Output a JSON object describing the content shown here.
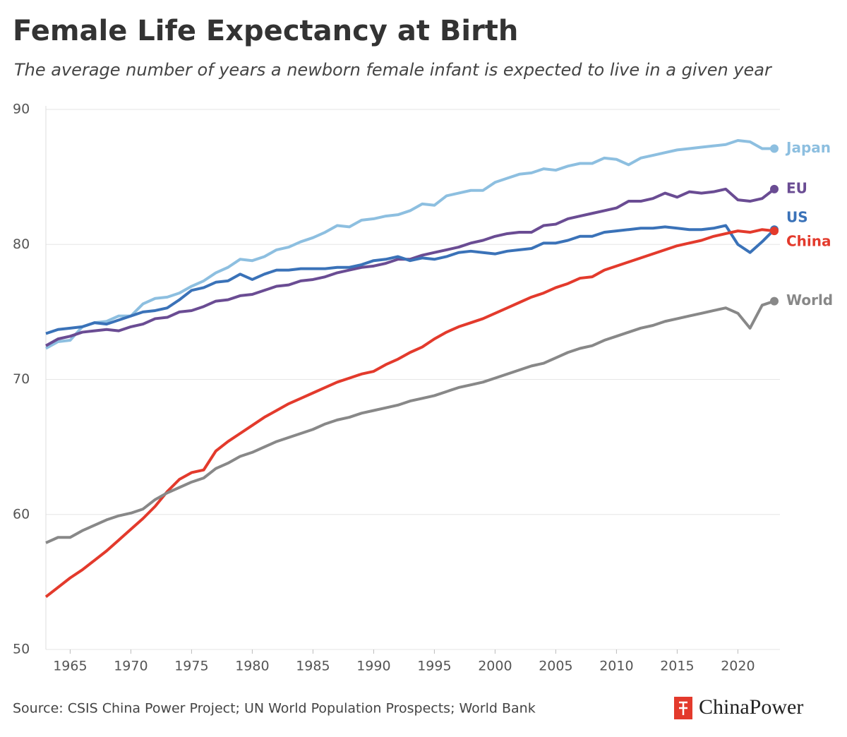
{
  "chart_data": {
    "type": "line",
    "title": "Female Life Expectancy at Birth",
    "subtitle": "The average number of years a newborn female infant is expected to live in a given year",
    "source": "Source: CSIS China Power Project; UN World Population Prospects; World Bank",
    "brand": "ChinaPower",
    "x": [
      1963,
      1964,
      1965,
      1966,
      1967,
      1968,
      1969,
      1970,
      1971,
      1972,
      1973,
      1974,
      1975,
      1976,
      1977,
      1978,
      1979,
      1980,
      1981,
      1982,
      1983,
      1984,
      1985,
      1986,
      1987,
      1988,
      1989,
      1990,
      1991,
      1992,
      1993,
      1994,
      1995,
      1996,
      1997,
      1998,
      1999,
      2000,
      2001,
      2002,
      2003,
      2004,
      2005,
      2006,
      2007,
      2008,
      2009,
      2010,
      2011,
      2012,
      2013,
      2014,
      2015,
      2016,
      2017,
      2018,
      2019,
      2020,
      2021,
      2022,
      2023
    ],
    "xlim": [
      1963,
      2023
    ],
    "xticks": [
      1965,
      1970,
      1975,
      1980,
      1985,
      1990,
      1995,
      2000,
      2005,
      2010,
      2015,
      2020
    ],
    "ylim": [
      50,
      90
    ],
    "yticks": [
      50,
      60,
      70,
      80,
      90
    ],
    "grid": true,
    "series": [
      {
        "name": "Japan",
        "color": "#8dbfe0",
        "values": [
          72.3,
          72.8,
          72.9,
          73.9,
          74.2,
          74.3,
          74.7,
          74.7,
          75.6,
          76.0,
          76.1,
          76.4,
          76.9,
          77.3,
          77.9,
          78.3,
          78.9,
          78.8,
          79.1,
          79.6,
          79.8,
          80.2,
          80.5,
          80.9,
          81.4,
          81.3,
          81.8,
          81.9,
          82.1,
          82.2,
          82.5,
          83.0,
          82.9,
          83.6,
          83.8,
          84.0,
          84.0,
          84.6,
          84.9,
          85.2,
          85.3,
          85.6,
          85.5,
          85.8,
          86.0,
          86.0,
          86.4,
          86.3,
          85.9,
          86.4,
          86.6,
          86.8,
          87.0,
          87.1,
          87.2,
          87.3,
          87.4,
          87.7,
          87.6,
          87.1,
          87.1
        ]
      },
      {
        "name": "EU",
        "color": "#6a4c93",
        "values": [
          72.5,
          73.0,
          73.2,
          73.5,
          73.6,
          73.7,
          73.6,
          73.9,
          74.1,
          74.5,
          74.6,
          75.0,
          75.1,
          75.4,
          75.8,
          75.9,
          76.2,
          76.3,
          76.6,
          76.9,
          77.0,
          77.3,
          77.4,
          77.6,
          77.9,
          78.1,
          78.3,
          78.4,
          78.6,
          78.9,
          78.9,
          79.2,
          79.4,
          79.6,
          79.8,
          80.1,
          80.3,
          80.6,
          80.8,
          80.9,
          80.9,
          81.4,
          81.5,
          81.9,
          82.1,
          82.3,
          82.5,
          82.7,
          83.2,
          83.2,
          83.4,
          83.8,
          83.5,
          83.9,
          83.8,
          83.9,
          84.1,
          83.3,
          83.2,
          83.4,
          84.1
        ]
      },
      {
        "name": "US",
        "color": "#3a72b8",
        "values": [
          73.4,
          73.7,
          73.8,
          73.9,
          74.2,
          74.1,
          74.4,
          74.7,
          75.0,
          75.1,
          75.3,
          75.9,
          76.6,
          76.8,
          77.2,
          77.3,
          77.8,
          77.4,
          77.8,
          78.1,
          78.1,
          78.2,
          78.2,
          78.2,
          78.3,
          78.3,
          78.5,
          78.8,
          78.9,
          79.1,
          78.8,
          79.0,
          78.9,
          79.1,
          79.4,
          79.5,
          79.4,
          79.3,
          79.5,
          79.6,
          79.7,
          80.1,
          80.1,
          80.3,
          80.6,
          80.6,
          80.9,
          81.0,
          81.1,
          81.2,
          81.2,
          81.3,
          81.2,
          81.1,
          81.1,
          81.2,
          81.4,
          80.0,
          79.4,
          80.2,
          81.1
        ]
      },
      {
        "name": "China",
        "color": "#e33a2c",
        "values": [
          53.9,
          54.6,
          55.3,
          55.9,
          56.6,
          57.3,
          58.1,
          58.9,
          59.7,
          60.6,
          61.7,
          62.6,
          63.1,
          63.3,
          64.7,
          65.4,
          66.0,
          66.6,
          67.2,
          67.7,
          68.2,
          68.6,
          69.0,
          69.4,
          69.8,
          70.1,
          70.4,
          70.6,
          71.1,
          71.5,
          72.0,
          72.4,
          73.0,
          73.5,
          73.9,
          74.2,
          74.5,
          74.9,
          75.3,
          75.7,
          76.1,
          76.4,
          76.8,
          77.1,
          77.5,
          77.6,
          78.1,
          78.4,
          78.7,
          79.0,
          79.3,
          79.6,
          79.9,
          80.1,
          80.3,
          80.6,
          80.8,
          81.0,
          80.9,
          81.1,
          81.0
        ]
      },
      {
        "name": "World",
        "color": "#888888",
        "values": [
          57.9,
          58.3,
          58.3,
          58.8,
          59.2,
          59.6,
          59.9,
          60.1,
          60.4,
          61.1,
          61.6,
          62.0,
          62.4,
          62.7,
          63.4,
          63.8,
          64.3,
          64.6,
          65.0,
          65.4,
          65.7,
          66.0,
          66.3,
          66.7,
          67.0,
          67.2,
          67.5,
          67.7,
          67.9,
          68.1,
          68.4,
          68.6,
          68.8,
          69.1,
          69.4,
          69.6,
          69.8,
          70.1,
          70.4,
          70.7,
          71.0,
          71.2,
          71.6,
          72.0,
          72.3,
          72.5,
          72.9,
          73.2,
          73.5,
          73.8,
          74.0,
          74.3,
          74.5,
          74.7,
          74.9,
          75.1,
          75.3,
          74.9,
          73.8,
          75.5,
          75.8
        ]
      }
    ]
  }
}
